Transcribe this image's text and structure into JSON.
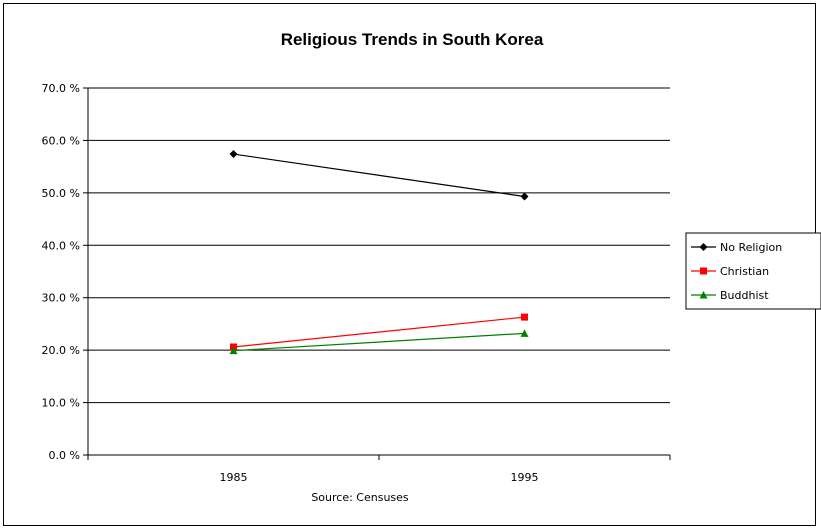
{
  "chart_data": {
    "type": "line",
    "title": "Religious Trends in South Korea",
    "xlabel": "Source: Censuses",
    "ylabel": "",
    "categories": [
      "1985",
      "1995"
    ],
    "ylim": [
      0,
      70
    ],
    "yticks": [
      0,
      10,
      20,
      30,
      40,
      50,
      60,
      70
    ],
    "ytick_labels": [
      "0.0 %",
      "10.0 %",
      "20.0 %",
      "30.0 %",
      "40.0 %",
      "50.0 %",
      "60.0 %",
      "70.0 %"
    ],
    "grid": true,
    "legend_position": "right",
    "series": [
      {
        "name": "No Religion",
        "values": [
          57.4,
          49.3
        ],
        "color": "#000000",
        "marker": "diamond"
      },
      {
        "name": "Christian",
        "values": [
          20.6,
          26.3
        ],
        "color": "#ff0000",
        "marker": "square"
      },
      {
        "name": "Buddhist",
        "values": [
          19.9,
          23.2
        ],
        "color": "#008000",
        "marker": "triangle"
      }
    ]
  }
}
